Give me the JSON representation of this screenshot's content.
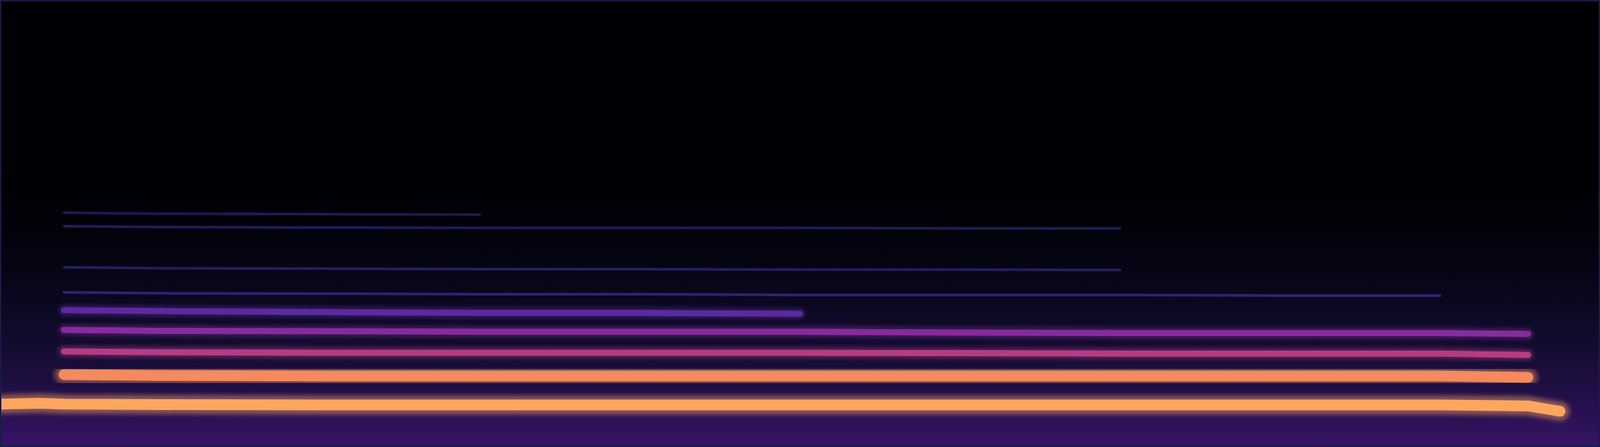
{
  "chart_data": {
    "type": "spectrogram",
    "x": [
      0,
      2.5,
      4,
      10,
      20,
      30,
      40,
      50,
      60,
      70,
      80,
      90,
      95.5,
      97.5
    ],
    "xlim": [
      0,
      100
    ],
    "ylim": [
      0,
      100
    ],
    "tick_labels": false,
    "grid": false,
    "series": [
      {
        "color": "#fca65f",
        "values": [
          9.6,
          9.8,
          9.6,
          9.5,
          9.4,
          9.4,
          9.4,
          9.4,
          9.4,
          9.4,
          9.4,
          9.4,
          9.2,
          8.0
        ]
      },
      {
        "color": "#f48a5e",
        "values": [
          null,
          null,
          16.2,
          16.0,
          15.9,
          15.9,
          15.9,
          15.9,
          15.9,
          15.9,
          15.9,
          15.9,
          15.6,
          null
        ]
      },
      {
        "color": "#b53c84",
        "values": [
          null,
          null,
          21.4,
          21.2,
          21.1,
          21.1,
          21.1,
          21.1,
          21.0,
          20.9,
          20.9,
          20.9,
          20.6,
          null
        ]
      },
      {
        "color": "#862c9c",
        "values": [
          null,
          null,
          26.2,
          26.0,
          25.9,
          25.8,
          25.8,
          25.8,
          25.6,
          25.5,
          25.5,
          25.5,
          25.3,
          null
        ]
      },
      {
        "color": "#5b2a9e",
        "values": [
          null,
          null,
          30.6,
          30.4,
          30.2,
          30.0,
          30.0,
          29.8,
          null,
          null,
          null,
          null,
          null,
          null
        ]
      },
      {
        "color": "#2c2470",
        "values": [
          null,
          null,
          34.6,
          34.4,
          34.3,
          34.2,
          34.2,
          34.0,
          34.0,
          34.0,
          33.9,
          33.9,
          null,
          null
        ]
      },
      {
        "color": "#241f5e",
        "values": [
          null,
          null,
          40.2,
          40.0,
          39.9,
          39.8,
          39.8,
          39.7,
          39.7,
          39.6,
          null,
          null,
          null,
          null
        ]
      },
      {
        "color": "#221c56",
        "values": [
          null,
          null,
          49.4,
          49.2,
          49.1,
          49.0,
          49.0,
          49.0,
          48.9,
          48.9,
          null,
          null,
          null,
          null
        ]
      },
      {
        "color": "#1f1a50",
        "values": [
          null,
          null,
          52.4,
          52.2,
          52.1,
          52.0,
          null,
          null,
          null,
          null,
          null,
          null,
          null,
          null
        ]
      }
    ]
  }
}
